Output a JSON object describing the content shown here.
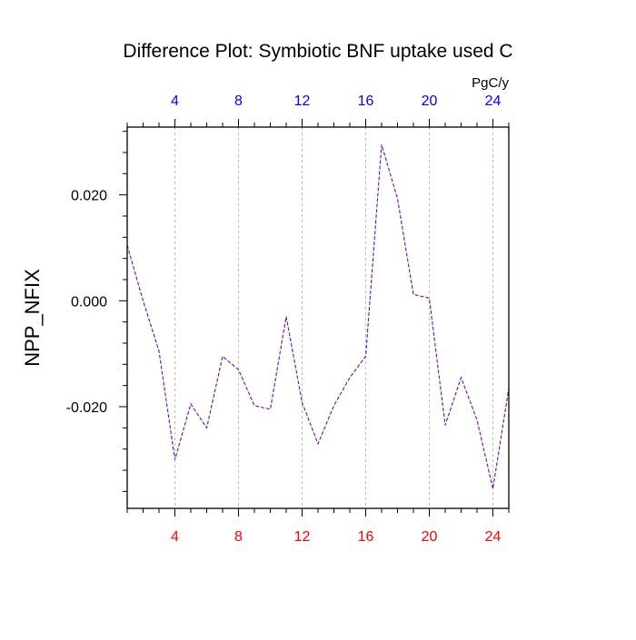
{
  "chart_data": {
    "type": "line",
    "title": "Difference Plot: Symbiotic BNF uptake used C",
    "ylabel": "NPP_NFIX",
    "top_axis_units": "PgC/y",
    "xlim": [
      1,
      25
    ],
    "ylim": [
      -0.0392,
      0.0328
    ],
    "x_ticks": [
      4,
      8,
      12,
      16,
      20,
      24
    ],
    "y_ticks": [
      0.02,
      0.0,
      -0.02
    ],
    "x_tick_labels": [
      "4",
      "8",
      "12",
      "16",
      "20",
      "24"
    ],
    "y_tick_labels": [
      "0.020",
      "0.000",
      "-0.020"
    ],
    "grid": {
      "vertical": true,
      "horizontal": false
    },
    "colors": {
      "bottom_ticks": "#ff0000",
      "top_ticks": "#0000ff",
      "line": "#6a0dad",
      "grid": "#aaaaaa"
    },
    "x": [
      1,
      2,
      3,
      4,
      5,
      6,
      7,
      8,
      9,
      10,
      11,
      12,
      13,
      14,
      15,
      16,
      17,
      18,
      19,
      20,
      21,
      22,
      23,
      24,
      25
    ],
    "series": [
      {
        "values": [
          0.0105,
          0.0,
          -0.0095,
          -0.03,
          -0.0195,
          -0.024,
          -0.0105,
          -0.013,
          -0.0198,
          -0.0205,
          -0.003,
          -0.0192,
          -0.027,
          -0.0198,
          -0.0145,
          -0.0105,
          0.0295,
          0.0193,
          0.0012,
          0.0005,
          -0.0235,
          -0.0145,
          -0.0225,
          -0.0355,
          -0.0165
        ]
      }
    ]
  }
}
